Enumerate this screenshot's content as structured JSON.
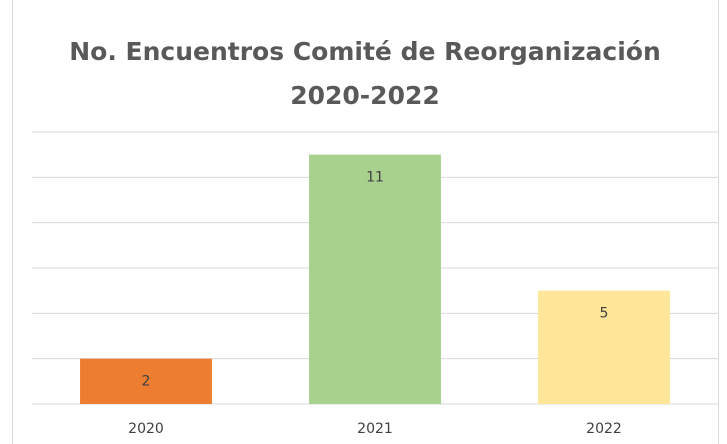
{
  "chart_data": {
    "type": "bar",
    "title": "No. Encuentros Comité de Reorganización 2020-2022",
    "categories": [
      "2020",
      "2021",
      "2022"
    ],
    "values": [
      2,
      11,
      5
    ],
    "colors": [
      "#ed7d31",
      "#a9d18e",
      "#ffe699"
    ],
    "ylim": [
      0,
      12
    ],
    "yticks": [
      0,
      2,
      4,
      6,
      8,
      10,
      12
    ],
    "grid": true
  }
}
